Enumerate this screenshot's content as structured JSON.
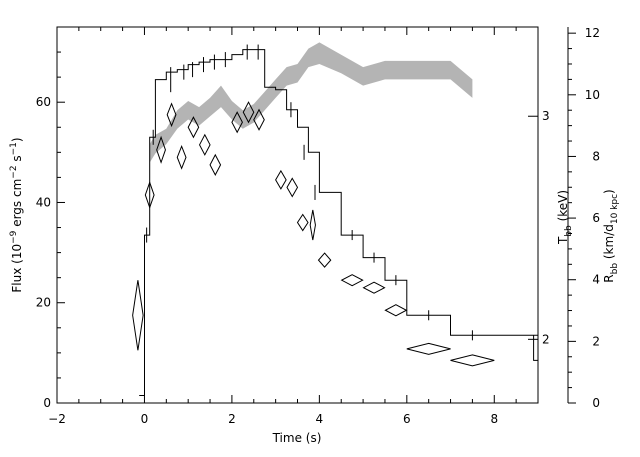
{
  "chart_data": {
    "type": "line",
    "xlabel": "Time (s)",
    "ylabel": {
      "main": "Flux (10",
      "exp1": "−9",
      "mid": " ergs cm",
      "exp2": "−2",
      "mid2": " s",
      "exp3": "−1",
      "end": ")"
    },
    "y2label": {
      "main": "T",
      "sub": "bb",
      "end": " (keV)"
    },
    "y3label": {
      "main": "R",
      "sub": "bb",
      "mid": " (km/d",
      "sub2": "10 kpc",
      "end": ")"
    },
    "xlim": [
      -2,
      9
    ],
    "ylim": [
      0,
      75
    ],
    "y3lim": [
      0,
      12.2
    ],
    "xticks": [
      {
        "v": -2,
        "label": "−2"
      },
      {
        "v": 0,
        "label": "0"
      },
      {
        "v": 2,
        "label": "2"
      },
      {
        "v": 4,
        "label": "4"
      },
      {
        "v": 6,
        "label": "6"
      },
      {
        "v": 8,
        "label": "8"
      }
    ],
    "yticks": [
      {
        "v": 0,
        "label": "0"
      },
      {
        "v": 20,
        "label": "20"
      },
      {
        "v": 40,
        "label": "40"
      },
      {
        "v": 60,
        "label": "60"
      }
    ],
    "y2ticks": [
      {
        "v": 2,
        "label": "2",
        "flux": 12.7
      },
      {
        "v": 3,
        "label": "3",
        "flux": 57.2
      }
    ],
    "y3ticks": [
      {
        "v": 0,
        "label": "0"
      },
      {
        "v": 2,
        "label": "2"
      },
      {
        "v": 4,
        "label": "4"
      },
      {
        "v": 6,
        "label": "6"
      },
      {
        "v": 8,
        "label": "8"
      },
      {
        "v": 10,
        "label": "10"
      },
      {
        "v": 12,
        "label": "12"
      }
    ],
    "flux_series": {
      "edges": [
        -0.12,
        0.0,
        0.12,
        0.25,
        0.5,
        0.75,
        1.0,
        1.25,
        1.5,
        1.75,
        2.0,
        2.25,
        2.5,
        2.75,
        3.0,
        3.25,
        3.5,
        3.75,
        4.0,
        4.5,
        5.0,
        5.5,
        6.0,
        7.0,
        9.0
      ],
      "values": [
        1.5,
        33.5,
        53,
        64.5,
        66,
        66.5,
        67.5,
        68,
        68.5,
        68.5,
        69.5,
        70.5,
        70.5,
        63,
        62.5,
        58.5,
        55,
        50,
        42,
        33.5,
        29,
        24.5,
        17.5,
        13.5
      ],
      "last_stub": {
        "x0": 8.9,
        "x1": 9.0,
        "y0": 13.5,
        "y1": 8.5
      },
      "xerr_points": [
        {
          "x": 0.05,
          "y": 33.5,
          "err": 1.5
        },
        {
          "x": 0.2,
          "y": 53,
          "err": 1.5
        },
        {
          "x": 0.6,
          "y": 64.5,
          "err": 2.5
        },
        {
          "x": 0.9,
          "y": 66,
          "err": 1.5
        },
        {
          "x": 1.1,
          "y": 66.5,
          "err": 1.5
        },
        {
          "x": 1.35,
          "y": 67.5,
          "err": 1.5
        },
        {
          "x": 1.6,
          "y": 68,
          "err": 1.5
        },
        {
          "x": 1.85,
          "y": 68.5,
          "err": 1.5
        },
        {
          "x": 2.35,
          "y": 70,
          "err": 1.5
        },
        {
          "x": 2.6,
          "y": 70,
          "err": 1.5
        },
        {
          "x": 3.35,
          "y": 58.5,
          "err": 1.5
        },
        {
          "x": 3.65,
          "y": 50,
          "err": 1.5
        },
        {
          "x": 3.9,
          "y": 42,
          "err": 1.5
        },
        {
          "x": 4.75,
          "y": 33.5,
          "err": 1.0
        },
        {
          "x": 5.25,
          "y": 29,
          "err": 1.0
        },
        {
          "x": 5.75,
          "y": 24.5,
          "err": 1.0
        },
        {
          "x": 6.5,
          "y": 17.5,
          "err": 1.0
        },
        {
          "x": 7.5,
          "y": 13.5,
          "err": 1.0
        }
      ]
    },
    "kT_diamonds": [
      {
        "x": -0.15,
        "y": 17.5,
        "dx": 0.12,
        "dy": 7.0
      },
      {
        "x": 0.12,
        "y": 41.5,
        "dx": 0.1,
        "dy": 2.5
      },
      {
        "x": 0.38,
        "y": 50.5,
        "dx": 0.1,
        "dy": 2.5
      },
      {
        "x": 0.62,
        "y": 57.5,
        "dx": 0.1,
        "dy": 2.2
      },
      {
        "x": 0.85,
        "y": 49,
        "dx": 0.1,
        "dy": 2.2
      },
      {
        "x": 1.12,
        "y": 55,
        "dx": 0.12,
        "dy": 2.0
      },
      {
        "x": 1.38,
        "y": 51.5,
        "dx": 0.12,
        "dy": 2.0
      },
      {
        "x": 1.62,
        "y": 47.5,
        "dx": 0.12,
        "dy": 2.0
      },
      {
        "x": 2.12,
        "y": 56,
        "dx": 0.12,
        "dy": 2.0
      },
      {
        "x": 2.38,
        "y": 58,
        "dx": 0.12,
        "dy": 2.0
      },
      {
        "x": 2.62,
        "y": 56.5,
        "dx": 0.12,
        "dy": 2.0
      },
      {
        "x": 3.12,
        "y": 44.5,
        "dx": 0.12,
        "dy": 1.8
      },
      {
        "x": 3.38,
        "y": 43,
        "dx": 0.12,
        "dy": 1.8
      },
      {
        "x": 3.62,
        "y": 36,
        "dx": 0.12,
        "dy": 1.6
      },
      {
        "x": 3.85,
        "y": 35.5,
        "dx": 0.06,
        "dy": 3.0
      },
      {
        "x": 4.12,
        "y": 28.5,
        "dx": 0.14,
        "dy": 1.4
      },
      {
        "x": 4.75,
        "y": 24.5,
        "dx": 0.24,
        "dy": 1.1
      },
      {
        "x": 5.25,
        "y": 23,
        "dx": 0.24,
        "dy": 1.1
      },
      {
        "x": 5.75,
        "y": 18.5,
        "dx": 0.24,
        "dy": 1.1
      },
      {
        "x": 6.5,
        "y": 10.8,
        "dx": 0.5,
        "dy": 1.1
      },
      {
        "x": 7.5,
        "y": 8.5,
        "dx": 0.5,
        "dy": 1.1
      }
    ],
    "radius_band": {
      "x": [
        0.12,
        0.25,
        0.5,
        0.75,
        1.0,
        1.25,
        1.5,
        1.75,
        2.0,
        2.25,
        2.5,
        2.75,
        3.0,
        3.25,
        3.5,
        3.75,
        4.0,
        4.5,
        5.0,
        5.5,
        6.0,
        7.0,
        7.5
      ],
      "lo": [
        7.8,
        8.1,
        8.4,
        8.9,
        9.2,
        9.0,
        9.3,
        9.6,
        9.2,
        8.9,
        9.1,
        9.5,
        9.9,
        10.3,
        10.4,
        10.9,
        11.0,
        10.7,
        10.3,
        10.5,
        10.5,
        10.5,
        9.9
      ],
      "hi": [
        8.4,
        8.7,
        8.9,
        9.5,
        9.8,
        9.6,
        9.9,
        10.3,
        9.8,
        9.5,
        9.7,
        10.1,
        10.5,
        10.9,
        11.0,
        11.5,
        11.7,
        11.3,
        10.9,
        11.1,
        11.1,
        11.1,
        10.5
      ],
      "color": "#b4b4b4"
    },
    "grid": false,
    "colors": {
      "axis": "#000000",
      "band": "#b4b4b4",
      "line": "#000000"
    }
  }
}
